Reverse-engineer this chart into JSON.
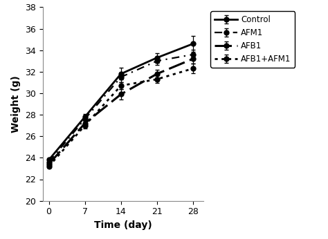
{
  "x": [
    0,
    7,
    14,
    21,
    28
  ],
  "series_order": [
    "Control",
    "AFM1",
    "AFB1",
    "AFB1+AFM1"
  ],
  "series": {
    "Control": {
      "y": [
        23.8,
        27.8,
        31.8,
        33.3,
        34.6
      ],
      "yerr": [
        0.15,
        0.25,
        0.55,
        0.45,
        0.75
      ],
      "linestyle": "-",
      "linewidth": 2.0,
      "dashes": null,
      "marker": "o",
      "markersize": 5,
      "label": "Control"
    },
    "AFM1": {
      "y": [
        23.6,
        27.6,
        31.5,
        33.0,
        33.6
      ],
      "yerr": [
        0.15,
        0.25,
        0.45,
        0.35,
        0.45
      ],
      "linestyle": "--",
      "linewidth": 1.6,
      "dashes": [
        5,
        3,
        1,
        3
      ],
      "marker": "o",
      "markersize": 5,
      "label": "AFM1"
    },
    "AFB1": {
      "y": [
        23.4,
        27.2,
        29.9,
        31.8,
        33.2
      ],
      "yerr": [
        0.15,
        0.25,
        0.45,
        0.35,
        0.45
      ],
      "linestyle": "--",
      "linewidth": 2.2,
      "dashes": [
        8,
        3
      ],
      "marker": "o",
      "markersize": 5,
      "label": "AFB1"
    },
    "AFB1+AFM1": {
      "y": [
        23.2,
        27.0,
        30.7,
        31.3,
        32.3
      ],
      "yerr": [
        0.15,
        0.25,
        0.3,
        0.35,
        0.45
      ],
      "linestyle": ":",
      "linewidth": 2.0,
      "dashes": [
        2,
        2
      ],
      "marker": "o",
      "markersize": 5,
      "label": "AFB1+AFM1"
    }
  },
  "xlabel": "Time (day)",
  "ylabel": "Weight (g)",
  "xlim": [
    -1.2,
    30
  ],
  "ylim": [
    20,
    38
  ],
  "xticks": [
    0,
    7,
    14,
    21,
    28
  ],
  "yticks": [
    20,
    22,
    24,
    26,
    28,
    30,
    32,
    34,
    36,
    38
  ],
  "background_color": "#ffffff",
  "color": "#000000"
}
